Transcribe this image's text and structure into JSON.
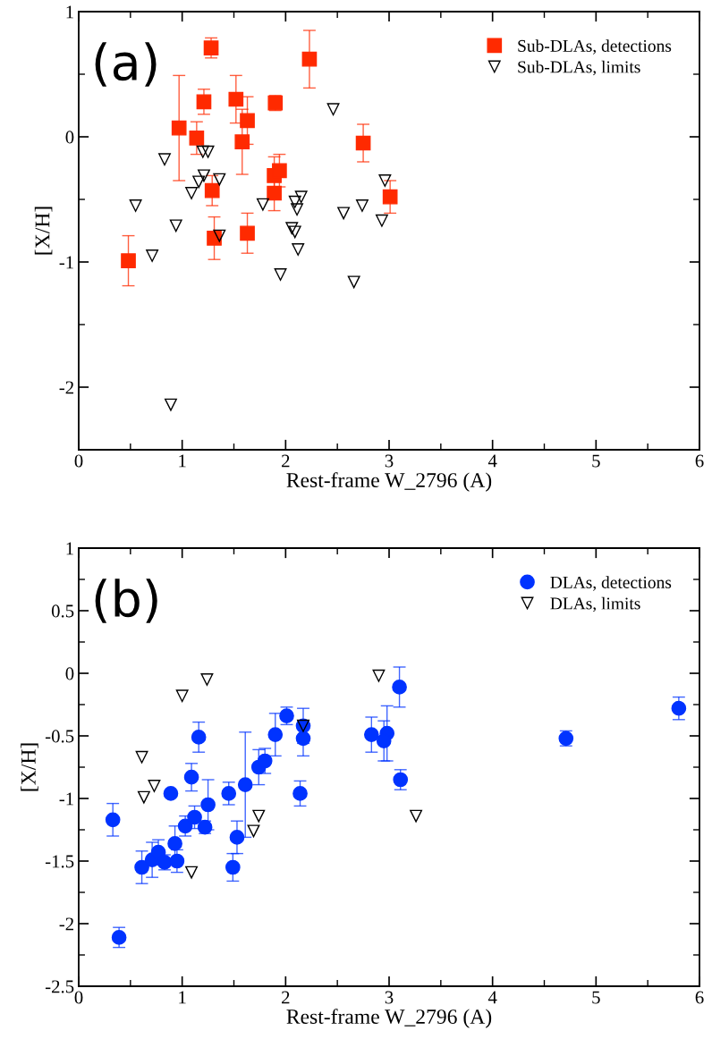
{
  "chart_data": [
    {
      "type": "scatter",
      "xlabel": "Rest-frame W_2796 (A)",
      "ylabel": "[X/H]",
      "annotations": [
        "(a)"
      ],
      "legend": "top right",
      "grid": false,
      "xlim": [
        0,
        6
      ],
      "xticks": [
        0,
        {
          "value": 0.5,
          "label": null
        },
        1,
        {
          "value": 1.5,
          "label": null
        },
        2,
        {
          "value": 2.5,
          "label": null
        },
        3,
        {
          "value": 3.5,
          "label": null
        },
        4,
        {
          "value": 4.5,
          "label": null
        },
        5,
        {
          "value": 5.5,
          "label": null
        },
        6
      ],
      "ylim": [
        -2.5,
        1
      ],
      "yticks": [
        {
          "value": -2.5,
          "label": null
        },
        -2,
        {
          "value": -1.5,
          "label": null
        },
        -1,
        {
          "value": -0.5,
          "label": null
        },
        0,
        {
          "value": 0.5,
          "label": null
        },
        1
      ],
      "series": [
        {
          "name": "Sub-DLAs, detections",
          "color": "#ff2a00",
          "marker": "square",
          "x": [
            0.48,
            0.97,
            1.14,
            1.21,
            1.28,
            1.29,
            1.31,
            1.52,
            1.58,
            1.63,
            1.63,
            1.9,
            1.89,
            1.94,
            1.89,
            2.23,
            2.75,
            3.01
          ],
          "values": [
            -0.99,
            0.07,
            -0.01,
            0.28,
            0.71,
            -0.43,
            -0.81,
            0.3,
            -0.04,
            0.13,
            -0.77,
            0.27,
            -0.31,
            -0.27,
            -0.45,
            0.62,
            -0.05,
            -0.48
          ],
          "errors": [
            0.2,
            0.42,
            0.13,
            0.1,
            0.08,
            0.12,
            0.17,
            0.19,
            0.26,
            0.19,
            0.16,
            0.06,
            0.15,
            0.13,
            0.14,
            0.23,
            0.15,
            0.13
          ]
        },
        {
          "name": "Sub-DLAs, limits",
          "color": "#000000",
          "marker": "triangle",
          "x": [
            0.55,
            0.83,
            0.94,
            0.71,
            1.09,
            1.16,
            1.21,
            1.2,
            1.25,
            1.36,
            1.36,
            1.78,
            0.89,
            2.46,
            2.09,
            2.15,
            2.11,
            2.06,
            2.09,
            2.12,
            1.95,
            2.56,
            2.74,
            2.93,
            2.96,
            2.66
          ],
          "values": [
            -0.55,
            -0.18,
            -0.71,
            -0.95,
            -0.45,
            -0.36,
            -0.31,
            -0.12,
            -0.12,
            -0.34,
            -0.79,
            -0.54,
            -2.14,
            0.22,
            -0.52,
            -0.48,
            -0.58,
            -0.73,
            -0.76,
            -0.9,
            -1.1,
            -0.61,
            -0.55,
            -0.67,
            -0.35,
            -1.16
          ]
        }
      ]
    },
    {
      "type": "scatter",
      "xlabel": "Rest-frame W_2796 (A)",
      "ylabel": "[X/H]",
      "annotations": [
        "(b)"
      ],
      "legend": "top right",
      "grid": false,
      "xlim": [
        0,
        6
      ],
      "xticks": [
        0,
        {
          "value": 0.5,
          "label": null
        },
        1,
        {
          "value": 1.5,
          "label": null
        },
        2,
        {
          "value": 2.5,
          "label": null
        },
        3,
        {
          "value": 3.5,
          "label": null
        },
        4,
        {
          "value": 4.5,
          "label": null
        },
        5,
        {
          "value": 5.5,
          "label": null
        },
        6
      ],
      "ylim": [
        -2.5,
        1
      ],
      "yticks": [
        -2.5,
        {
          "value": -2.25,
          "label": null
        },
        -2,
        {
          "value": -1.75,
          "label": null
        },
        -1.5,
        {
          "value": -1.25,
          "label": null
        },
        -1,
        {
          "value": -0.75,
          "label": null
        },
        -0.5,
        {
          "value": -0.25,
          "label": null
        },
        0,
        {
          "value": 0.25,
          "label": null
        },
        0.5,
        {
          "value": 0.75,
          "label": null
        },
        1
      ],
      "series": [
        {
          "name": "DLAs, detections",
          "color": "#0033ff",
          "marker": "circle",
          "x": [
            0.33,
            0.39,
            0.61,
            0.71,
            0.77,
            0.83,
            0.89,
            0.93,
            0.95,
            1.03,
            1.09,
            1.12,
            1.16,
            1.22,
            1.25,
            1.45,
            1.49,
            1.53,
            1.61,
            1.74,
            1.8,
            1.9,
            2.01,
            2.17,
            2.17,
            2.14,
            2.83,
            2.98,
            2.95,
            3.1,
            3.11,
            4.71,
            5.8
          ],
          "values": [
            -1.17,
            -2.11,
            -1.55,
            -1.49,
            -1.43,
            -1.51,
            -0.96,
            -1.36,
            -1.5,
            -1.22,
            -0.83,
            -1.15,
            -0.51,
            -1.23,
            -1.05,
            -0.96,
            -1.55,
            -1.31,
            -0.89,
            -0.75,
            -0.7,
            -0.49,
            -0.34,
            -0.42,
            -0.52,
            -0.96,
            -0.49,
            -0.48,
            -0.54,
            -0.11,
            -0.85,
            -0.52,
            -0.28
          ],
          "errors": [
            0.13,
            0.08,
            0.13,
            0.14,
            0.1,
            0.06,
            null,
            0.14,
            0.09,
            0.08,
            0.11,
            0.09,
            0.12,
            0.05,
            0.2,
            0.09,
            0.11,
            0.13,
            0.42,
            0.14,
            0.1,
            0.17,
            0.07,
            0.14,
            0.14,
            0.1,
            0.14,
            0.22,
            0.16,
            0.16,
            0.08,
            0.06,
            0.09
          ]
        },
        {
          "name": "DLAs, limits",
          "color": "#000000",
          "marker": "triangle",
          "x": [
            0.61,
            0.63,
            0.73,
            1.0,
            1.24,
            1.09,
            1.74,
            1.69,
            2.17,
            2.9,
            3.26
          ],
          "values": [
            -0.67,
            -0.99,
            -0.9,
            -0.18,
            -0.05,
            -1.59,
            -1.14,
            -1.26,
            -0.42,
            -0.02,
            -1.14
          ]
        }
      ]
    }
  ]
}
